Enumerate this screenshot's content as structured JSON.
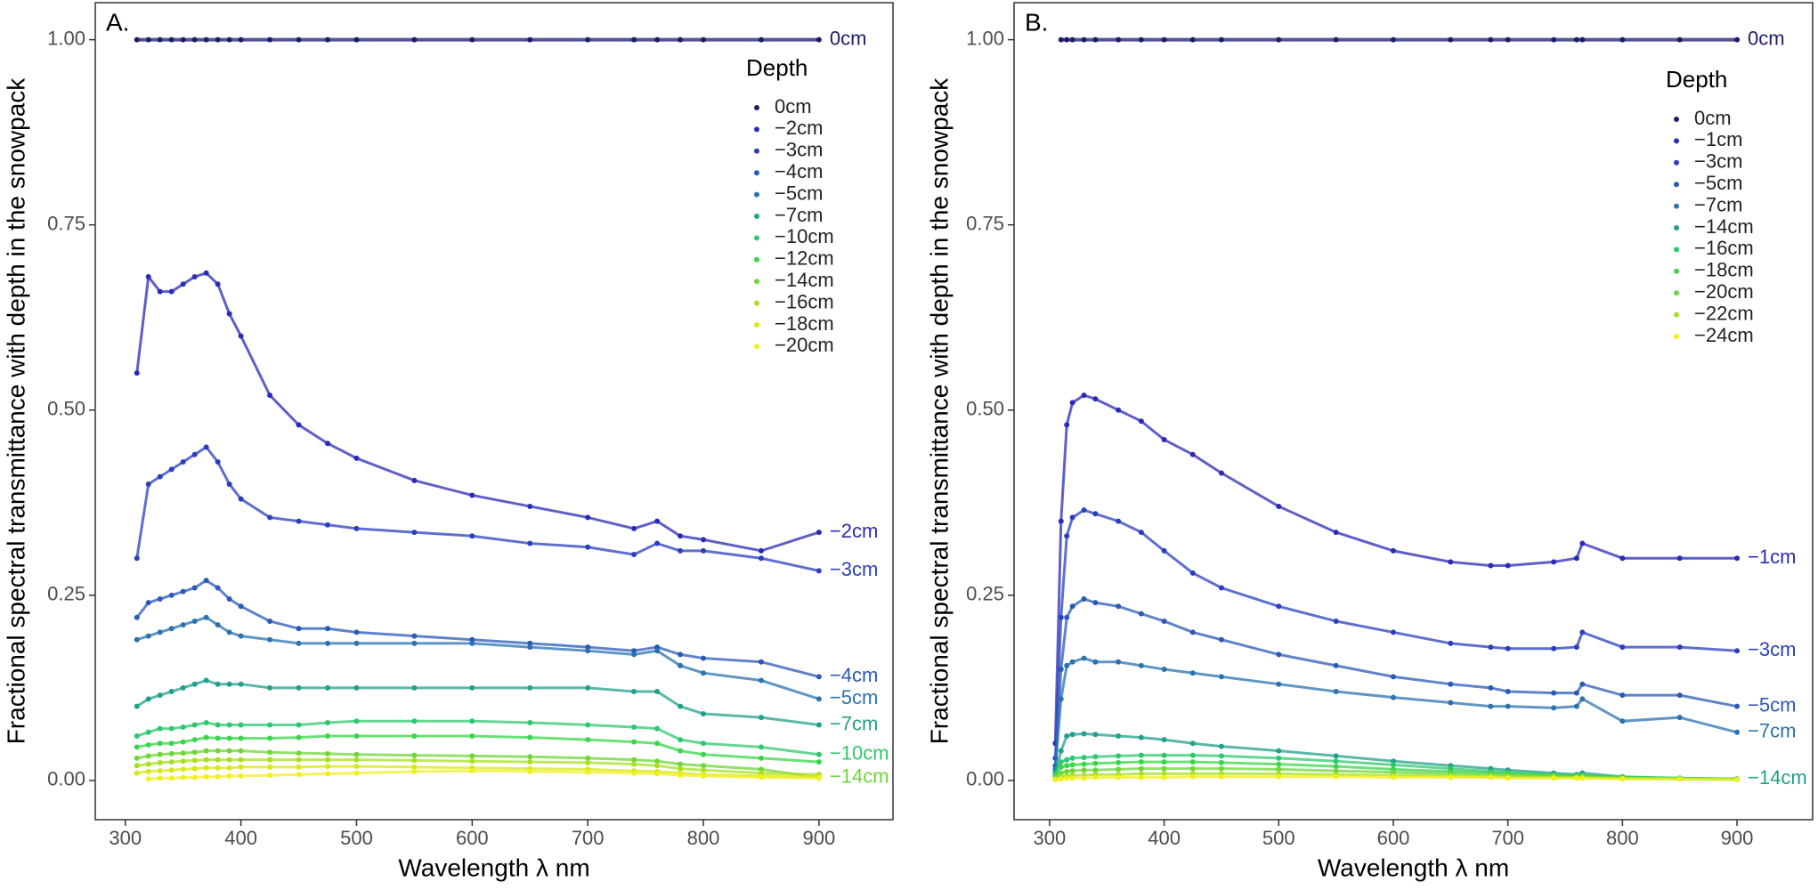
{
  "chart_data": [
    {
      "type": "scatter",
      "title": "A.",
      "x_label": "Wavelength λ nm",
      "y_label": "Fractional spectral transmittance with depth in the snowpack",
      "legend_title": "Depth",
      "legend_position": "top-right",
      "x": [
        310,
        320,
        330,
        340,
        350,
        360,
        370,
        380,
        390,
        400,
        425,
        450,
        475,
        500,
        550,
        600,
        650,
        700,
        740,
        760,
        780,
        800,
        850,
        900
      ],
      "xlim": [
        274,
        964
      ],
      "xticks": [
        300,
        400,
        500,
        600,
        700,
        800,
        900
      ],
      "ylim": [
        -0.053,
        1.05
      ],
      "yticks": [
        {
          "value": 0,
          "label": "0.00"
        },
        {
          "value": 0.25,
          "label": "0.25"
        },
        {
          "value": 0.5,
          "label": "0.50"
        },
        {
          "value": 0.75,
          "label": "0.75"
        },
        {
          "value": 1,
          "label": "1.00"
        }
      ],
      "series": [
        {
          "name": "0cm",
          "color": "#1c1c6a",
          "end_label": "0cm",
          "values": [
            1,
            1,
            1,
            1,
            1,
            1,
            1,
            1,
            1,
            1,
            1,
            1,
            1,
            1,
            1,
            1,
            1,
            1,
            1,
            1,
            1,
            1,
            1,
            1
          ]
        },
        {
          "name": "−2cm",
          "color": "#2a2ab8",
          "end_label": "−2cm",
          "values": [
            0.55,
            0.68,
            0.66,
            0.66,
            0.67,
            0.68,
            0.685,
            0.67,
            0.63,
            0.6,
            0.52,
            0.48,
            0.455,
            0.435,
            0.405,
            0.385,
            0.37,
            0.355,
            0.34,
            0.35,
            0.33,
            0.325,
            0.31,
            0.335
          ]
        },
        {
          "name": "−3cm",
          "color": "#2a3fc0",
          "end_label": "−3cm",
          "values": [
            0.3,
            0.4,
            0.41,
            0.42,
            0.43,
            0.44,
            0.45,
            0.43,
            0.4,
            0.38,
            0.355,
            0.35,
            0.345,
            0.34,
            0.335,
            0.33,
            0.32,
            0.315,
            0.305,
            0.32,
            0.31,
            0.31,
            0.3,
            0.283
          ]
        },
        {
          "name": "−4cm",
          "color": "#2a5ab8",
          "end_label": "−4cm",
          "values": [
            0.22,
            0.24,
            0.245,
            0.25,
            0.255,
            0.26,
            0.27,
            0.26,
            0.245,
            0.235,
            0.215,
            0.205,
            0.205,
            0.2,
            0.195,
            0.19,
            0.185,
            0.18,
            0.175,
            0.18,
            0.17,
            0.165,
            0.16,
            0.14
          ]
        },
        {
          "name": "−5cm",
          "color": "#2b72b0",
          "end_label": "−5cm",
          "values": [
            0.19,
            0.195,
            0.2,
            0.205,
            0.21,
            0.215,
            0.22,
            0.21,
            0.2,
            0.195,
            0.19,
            0.185,
            0.185,
            0.185,
            0.185,
            0.185,
            0.18,
            0.175,
            0.17,
            0.175,
            0.155,
            0.145,
            0.135,
            0.11
          ]
        },
        {
          "name": "−7cm",
          "color": "#22a08c",
          "end_label": "−7cm",
          "values": [
            0.1,
            0.11,
            0.115,
            0.12,
            0.125,
            0.13,
            0.135,
            0.13,
            0.13,
            0.13,
            0.125,
            0.125,
            0.125,
            0.125,
            0.125,
            0.125,
            0.125,
            0.125,
            0.12,
            0.12,
            0.1,
            0.09,
            0.085,
            0.075
          ]
        },
        {
          "name": "−10cm",
          "color": "#2dc86d",
          "end_label": "−10cm",
          "values": [
            0.06,
            0.065,
            0.07,
            0.07,
            0.072,
            0.075,
            0.078,
            0.075,
            0.075,
            0.075,
            0.075,
            0.075,
            0.078,
            0.08,
            0.08,
            0.08,
            0.078,
            0.075,
            0.072,
            0.07,
            0.055,
            0.05,
            0.045,
            0.035
          ]
        },
        {
          "name": "−12cm",
          "color": "#3ad64a",
          "values": [
            0.045,
            0.048,
            0.05,
            0.05,
            0.052,
            0.055,
            0.058,
            0.057,
            0.057,
            0.057,
            0.057,
            0.058,
            0.06,
            0.06,
            0.06,
            0.06,
            0.058,
            0.055,
            0.052,
            0.05,
            0.04,
            0.035,
            0.03,
            0.025
          ]
        },
        {
          "name": "−14cm",
          "color": "#6fd63a",
          "end_label": "−14cm",
          "values": [
            0.03,
            0.033,
            0.035,
            0.036,
            0.037,
            0.038,
            0.04,
            0.04,
            0.04,
            0.04,
            0.038,
            0.037,
            0.036,
            0.035,
            0.034,
            0.033,
            0.032,
            0.03,
            0.028,
            0.026,
            0.022,
            0.02,
            0.015,
            0.004
          ]
        },
        {
          "name": "−16cm",
          "color": "#a8e020",
          "values": [
            0.02,
            0.022,
            0.024,
            0.025,
            0.026,
            0.027,
            0.028,
            0.028,
            0.028,
            0.028,
            0.028,
            0.028,
            0.028,
            0.028,
            0.027,
            0.026,
            0.025,
            0.024,
            0.022,
            0.02,
            0.016,
            0.014,
            0.01,
            0.008
          ]
        },
        {
          "name": "−18cm",
          "color": "#d8e818",
          "values": [
            0.01,
            0.012,
            0.013,
            0.014,
            0.015,
            0.016,
            0.017,
            0.017,
            0.017,
            0.018,
            0.018,
            0.018,
            0.019,
            0.019,
            0.018,
            0.017,
            0.016,
            0.015,
            0.013,
            0.012,
            0.01,
            0.008,
            0.006,
            0.005
          ]
        },
        {
          "name": "−20cm",
          "color": "#f0f020",
          "values": [
            null,
            0.002,
            0.003,
            0.003,
            0.004,
            0.004,
            0.005,
            0.005,
            0.006,
            0.006,
            0.007,
            0.008,
            0.009,
            0.01,
            0.012,
            0.013,
            0.012,
            0.011,
            0.01,
            0.009,
            0.007,
            0.006,
            0.004,
            0.003
          ]
        }
      ]
    },
    {
      "type": "scatter",
      "title": "B.",
      "x_label": "Wavelength λ nm",
      "y_label": "Fractional spectral transmittance with depth in the snowpack",
      "legend_title": "Depth",
      "legend_position": "top-right",
      "x": [
        305,
        310,
        315,
        320,
        330,
        340,
        360,
        380,
        400,
        425,
        450,
        500,
        550,
        600,
        650,
        685,
        700,
        740,
        760,
        765,
        800,
        850,
        900
      ],
      "xlim": [
        269,
        966
      ],
      "xticks": [
        300,
        400,
        500,
        600,
        700,
        800,
        900
      ],
      "ylim": [
        -0.053,
        1.05
      ],
      "yticks": [
        {
          "value": 0,
          "label": "0.00"
        },
        {
          "value": 0.25,
          "label": "0.25"
        },
        {
          "value": 0.5,
          "label": "0.50"
        },
        {
          "value": 0.75,
          "label": "0.75"
        },
        {
          "value": 1,
          "label": "1.00"
        }
      ],
      "series": [
        {
          "name": "0cm",
          "color": "#1c1c6a",
          "end_label": "0cm",
          "values": [
            null,
            1,
            1,
            1,
            1,
            1,
            1,
            1,
            1,
            1,
            1,
            1,
            1,
            1,
            1,
            1,
            1,
            1,
            1,
            1,
            1,
            1,
            1
          ]
        },
        {
          "name": "−1cm",
          "color": "#2a2ab8",
          "end_label": "−1cm",
          "values": [
            0.05,
            0.35,
            0.48,
            0.51,
            0.52,
            0.515,
            0.5,
            0.485,
            0.46,
            0.44,
            0.415,
            0.37,
            0.335,
            0.31,
            0.295,
            0.29,
            0.29,
            0.295,
            0.3,
            0.32,
            0.3,
            0.3,
            0.3
          ]
        },
        {
          "name": "−3cm",
          "color": "#2a3fc0",
          "end_label": "−3cm",
          "values": [
            0.03,
            0.22,
            0.33,
            0.355,
            0.365,
            0.36,
            0.35,
            0.335,
            0.31,
            0.28,
            0.26,
            0.235,
            0.215,
            0.2,
            0.185,
            0.18,
            0.178,
            0.178,
            0.18,
            0.2,
            0.18,
            0.18,
            0.175
          ]
        },
        {
          "name": "−5cm",
          "color": "#2a5ab8",
          "end_label": "−5cm",
          "values": [
            0.02,
            0.15,
            0.22,
            0.235,
            0.245,
            0.24,
            0.235,
            0.225,
            0.215,
            0.2,
            0.19,
            0.17,
            0.155,
            0.14,
            0.13,
            0.125,
            0.12,
            0.118,
            0.118,
            0.13,
            0.115,
            0.115,
            0.1
          ]
        },
        {
          "name": "−7cm",
          "color": "#2b72b0",
          "end_label": "−7cm",
          "values": [
            0.015,
            0.11,
            0.155,
            0.16,
            0.165,
            0.16,
            0.16,
            0.155,
            0.15,
            0.145,
            0.14,
            0.13,
            0.12,
            0.112,
            0.105,
            0.1,
            0.1,
            0.098,
            0.1,
            0.11,
            0.08,
            0.085,
            0.065
          ]
        },
        {
          "name": "−14cm",
          "color": "#22a08c",
          "end_label": "−14cm",
          "values": [
            0.01,
            0.04,
            0.06,
            0.062,
            0.063,
            0.062,
            0.06,
            0.058,
            0.055,
            0.05,
            0.046,
            0.04,
            0.033,
            0.026,
            0.02,
            0.016,
            0.014,
            0.01,
            0.008,
            0.01,
            0.005,
            0.003,
            0.002
          ]
        },
        {
          "name": "−16cm",
          "color": "#2dc86d",
          "values": [
            0.008,
            0.025,
            0.028,
            0.03,
            0.031,
            0.032,
            0.033,
            0.034,
            0.034,
            0.034,
            0.033,
            0.03,
            0.026,
            0.021,
            0.016,
            0.012,
            0.011,
            0.008,
            0.007,
            0.007,
            0.004,
            0.003,
            0.002
          ]
        },
        {
          "name": "−18cm",
          "color": "#3ad64a",
          "values": [
            0.006,
            0.018,
            0.02,
            0.021,
            0.022,
            0.023,
            0.024,
            0.025,
            0.025,
            0.025,
            0.024,
            0.022,
            0.019,
            0.015,
            0.012,
            0.01,
            0.009,
            0.007,
            0.006,
            0.006,
            0.004,
            0.003,
            0.002
          ]
        },
        {
          "name": "−20cm",
          "color": "#6fd63a",
          "values": [
            0.004,
            0.01,
            0.012,
            0.013,
            0.014,
            0.014,
            0.015,
            0.016,
            0.016,
            0.016,
            0.016,
            0.015,
            0.013,
            0.011,
            0.009,
            0.008,
            0.007,
            0.006,
            0.005,
            0.005,
            0.003,
            0.002,
            0.002
          ]
        },
        {
          "name": "−22cm",
          "color": "#a8e020",
          "values": [
            0.002,
            0.005,
            0.006,
            0.007,
            0.007,
            0.008,
            0.008,
            0.009,
            0.009,
            0.009,
            0.009,
            0.009,
            0.008,
            0.007,
            0.006,
            0.005,
            0.005,
            0.004,
            0.004,
            0.004,
            0.003,
            0.002,
            0.001
          ]
        },
        {
          "name": "−24cm",
          "color": "#f0f020",
          "values": [
            0.001,
            0.002,
            0.003,
            0.003,
            0.003,
            0.004,
            0.004,
            0.004,
            0.004,
            0.005,
            0.005,
            0.005,
            0.005,
            0.004,
            0.004,
            0.004,
            0.003,
            0.003,
            0.003,
            0.003,
            0.002,
            0.002,
            0.001
          ]
        }
      ]
    }
  ]
}
